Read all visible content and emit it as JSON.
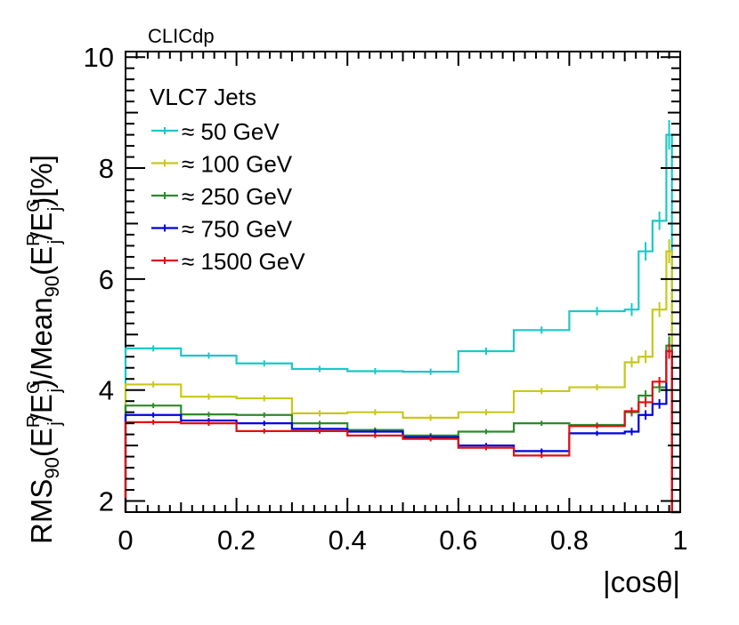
{
  "corner_label": "CLICdp",
  "chart_data": {
    "type": "line",
    "style": "step-histogram",
    "xlabel": "|cosθ|",
    "ylabel": "RMS90(E^R_j/E^G_j)/Mean90(E^R_j/E^G_j)[%]",
    "ylabel_parts": {
      "main1": "RMS",
      "sub1": "90",
      "open1": "(E",
      "sup1": "R",
      "sub2": "j",
      "slash1": "/E",
      "sup2": "G",
      "sub3": "j",
      "close1": ")/Mean",
      "sub4": "90",
      "open2": "(E",
      "sup3": "R",
      "sub5": "j",
      "slash2": "/E",
      "sup4": "G",
      "sub6": "j",
      "close2": ")[%]"
    },
    "xlim": [
      0,
      1.0
    ],
    "ylim": [
      1.8,
      10.1
    ],
    "x_ticks": [
      "0",
      "0.2",
      "0.4",
      "0.6",
      "0.8",
      "1"
    ],
    "y_ticks": [
      "2",
      "4",
      "6",
      "8",
      "10"
    ],
    "grid": false,
    "legend_title": "VLC7 Jets",
    "legend_position": "top-left",
    "bin_edges": [
      0,
      0.1,
      0.2,
      0.3,
      0.4,
      0.5,
      0.6,
      0.7,
      0.8,
      0.9,
      0.925,
      0.95,
      0.975,
      0.985
    ],
    "series": [
      {
        "name": "≈ 50 GeV",
        "color": "#1cc8c8",
        "values": [
          4.75,
          4.62,
          4.48,
          4.38,
          4.34,
          4.33,
          4.7,
          5.08,
          5.42,
          5.45,
          6.5,
          7.05,
          8.6
        ],
        "errors": [
          0.04,
          0.04,
          0.04,
          0.04,
          0.04,
          0.04,
          0.05,
          0.05,
          0.06,
          0.1,
          0.15,
          0.15,
          0.25
        ]
      },
      {
        "name": "≈ 100 GeV",
        "color": "#c8c81c",
        "values": [
          4.1,
          3.88,
          3.85,
          3.58,
          3.6,
          3.5,
          3.6,
          3.98,
          4.05,
          4.5,
          4.6,
          5.45,
          6.5
        ],
        "errors": [
          0.04,
          0.04,
          0.04,
          0.04,
          0.04,
          0.04,
          0.04,
          0.04,
          0.04,
          0.08,
          0.1,
          0.12,
          0.2
        ]
      },
      {
        "name": "≈ 250 GeV",
        "color": "#2a8c2a",
        "values": [
          3.72,
          3.56,
          3.55,
          3.4,
          3.28,
          3.18,
          3.25,
          3.4,
          3.37,
          3.6,
          3.9,
          4.05,
          4.8
        ],
        "errors": [
          0.03,
          0.03,
          0.03,
          0.03,
          0.03,
          0.03,
          0.03,
          0.03,
          0.03,
          0.06,
          0.08,
          0.08,
          0.15
        ]
      },
      {
        "name": "≈ 750 GeV",
        "color": "#0000e0",
        "values": [
          3.55,
          3.45,
          3.4,
          3.3,
          3.25,
          3.15,
          3.0,
          2.9,
          3.22,
          3.25,
          3.55,
          3.75,
          4.7
        ],
        "errors": [
          0.03,
          0.03,
          0.03,
          0.03,
          0.03,
          0.03,
          0.03,
          0.03,
          0.03,
          0.05,
          0.07,
          0.07,
          0.12
        ]
      },
      {
        "name": "≈ 1500 GeV",
        "color": "#e01010",
        "values": [
          3.42,
          3.4,
          3.26,
          3.26,
          3.18,
          3.12,
          2.96,
          2.82,
          3.35,
          3.62,
          3.78,
          4.15,
          4.7
        ],
        "errors": [
          0.03,
          0.03,
          0.03,
          0.03,
          0.03,
          0.03,
          0.03,
          0.03,
          0.03,
          0.05,
          0.07,
          0.07,
          0.12
        ]
      }
    ]
  }
}
